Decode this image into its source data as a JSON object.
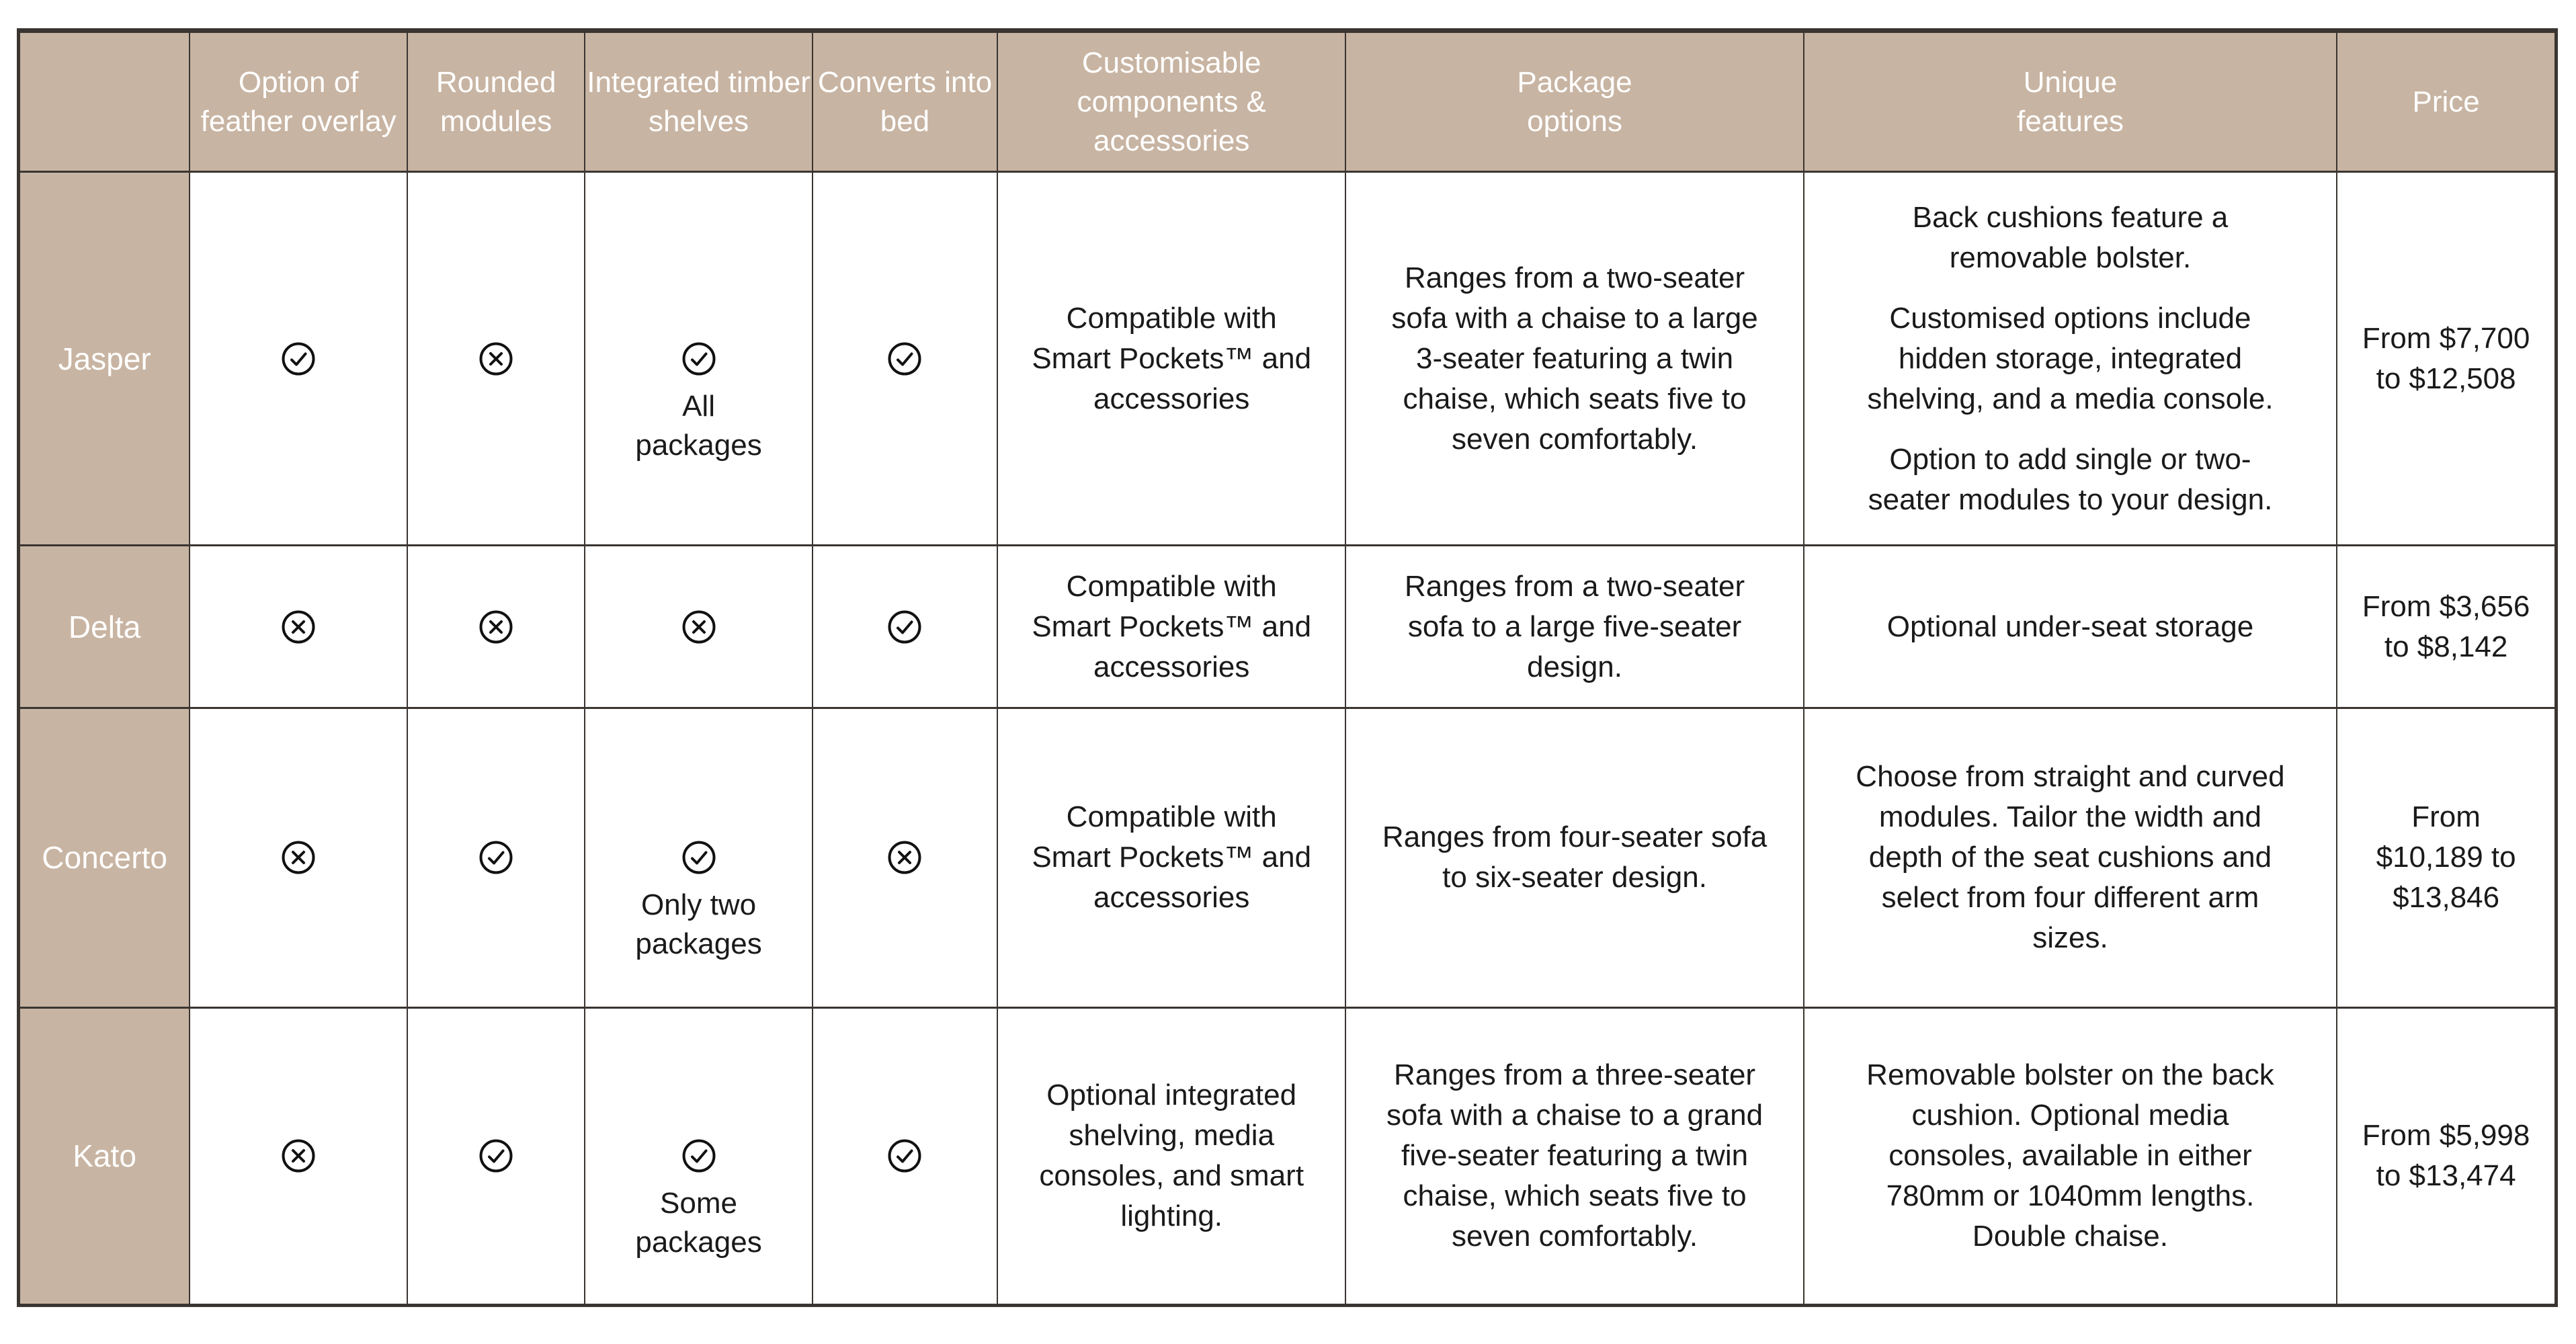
{
  "colors": {
    "tan_accent": "#C8B4A2",
    "grid_border": "#3A3531",
    "body_text": "#1A1A1A",
    "header_text": "#FFFFFF",
    "cell_background": "#FFFFFF"
  },
  "icons": {
    "check": "check-circle-icon",
    "cross": "cross-circle-icon"
  },
  "header": {
    "labels": [
      "",
      "Option of feather overlay",
      "Rounded modules",
      "Integrated timber shelves",
      "Converts into bed",
      "Customisable components & accessories",
      "Package options",
      "Unique features",
      "Price"
    ]
  },
  "rows": [
    {
      "name": "Jasper",
      "feather_overlay": "check",
      "rounded_modules": "cross",
      "timber_shelves": "check",
      "timber_caption": "All packages",
      "converts_into_bed": "check",
      "customisable": "Compatible with Smart Pockets™ and accessories",
      "package": "Ranges from a two-seater sofa with a chaise to a large 3-seater featuring a twin chaise, which seats five to seven comfortably.",
      "unique": [
        "Back cushions feature a removable bolster.",
        "Customised options include hidden storage, integrated shelving, and a media console.",
        "Option to add single or two-seater modules to your design."
      ],
      "price": "From $7,700 to $12,508"
    },
    {
      "name": "Delta",
      "feather_overlay": "cross",
      "rounded_modules": "cross",
      "timber_shelves": "cross",
      "converts_into_bed": "check",
      "customisable": "Compatible with Smart Pockets™ and accessories",
      "package": "Ranges from a two-seater sofa to a large five-seater design.",
      "unique": [
        "Optional under-seat storage"
      ],
      "price": "From $3,656 to $8,142"
    },
    {
      "name": "Concerto",
      "feather_overlay": "cross",
      "rounded_modules": "check",
      "timber_shelves": "check",
      "timber_caption": "Only two packages",
      "converts_into_bed": "cross",
      "customisable": "Compatible with Smart Pockets™ and accessories",
      "package": "Ranges from four-seater sofa to six-seater design.",
      "unique": [
        "Choose from straight and curved modules. Tailor the width and depth of the seat cushions and select from four different arm sizes."
      ],
      "price": "From $10,189 to $13,846"
    },
    {
      "name": "Kato",
      "feather_overlay": "cross",
      "rounded_modules": "check",
      "timber_shelves": "check",
      "timber_caption": "Some packages",
      "converts_into_bed": "check",
      "customisable": "Optional integrated shelving, media consoles, and smart lighting.",
      "package": "Ranges from a three-seater sofa with a chaise to a grand five-seater featuring a twin chaise, which seats five to seven comfortably.",
      "unique": [
        "Removable bolster on the back cushion. Optional media consoles, available in either 780mm or 1040mm lengths. Double chaise."
      ],
      "price": "From $5,998 to $13,474"
    }
  ]
}
